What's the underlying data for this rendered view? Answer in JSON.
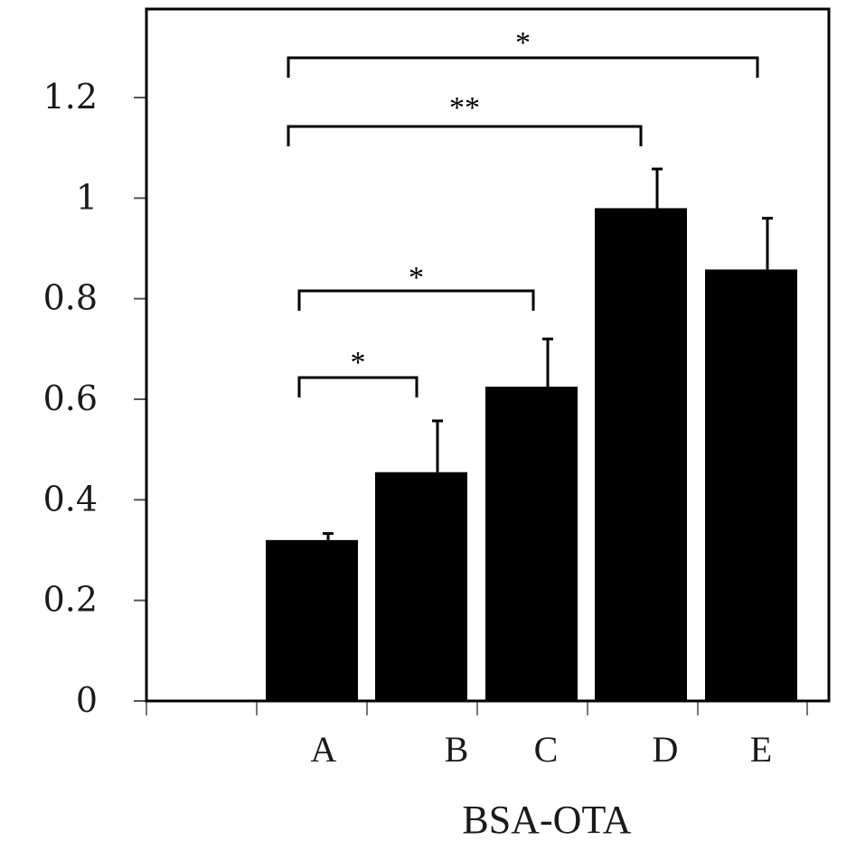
{
  "chart_data": {
    "type": "bar",
    "categories": [
      "A",
      "B",
      "C",
      "D",
      "E"
    ],
    "values": [
      0.32,
      0.455,
      0.625,
      0.98,
      0.858
    ],
    "errors": [
      0.013,
      0.102,
      0.095,
      0.078,
      0.102
    ],
    "xlabel": "BSA-OTA",
    "ylabel": "",
    "ylim": [
      0,
      1.2
    ],
    "yticks": [
      "0",
      "0.2",
      "0.4",
      "0.6",
      "0.8",
      "1",
      "1.2"
    ],
    "bar_color": "#000000",
    "grid": false,
    "significance": [
      {
        "from": "A",
        "to": "B",
        "label": "*"
      },
      {
        "from": "A",
        "to": "C",
        "label": "*"
      },
      {
        "from": "A",
        "to": "D",
        "label": "**"
      },
      {
        "from": "A",
        "to": "E",
        "label": "*"
      }
    ]
  }
}
